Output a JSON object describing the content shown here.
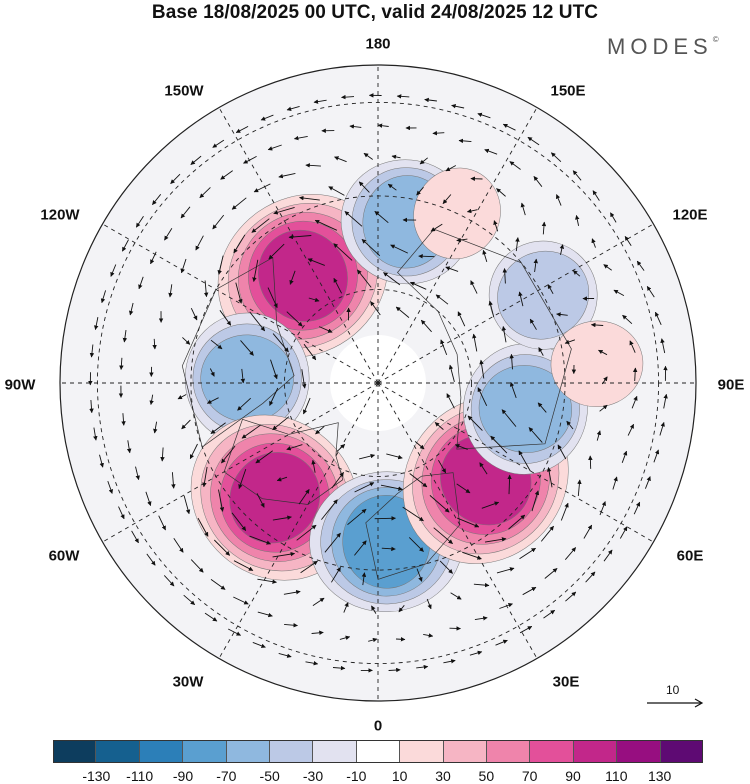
{
  "title": "Base 18/08/2025 00 UTC, valid 24/08/2025 12 UTC",
  "brand": "MODES",
  "brand_mark": "©",
  "longitude_labels": {
    "l180": "180",
    "l150e": "150E",
    "l120e": "120E",
    "l90e": "90E",
    "l60e": "60E",
    "l30e": "30E",
    "l0": "0",
    "l30w": "30W",
    "l60w": "60W",
    "l90w": "90W",
    "l120w": "120W",
    "l150w": "150W"
  },
  "vector_scale_label": "10",
  "colorbar": {
    "colors": [
      "#0d3d5e",
      "#15608f",
      "#2c7fb8",
      "#5a9fd0",
      "#8fb8df",
      "#bcc9e6",
      "#e2e2f0",
      "#ffffff",
      "#fbdada",
      "#f6b5c4",
      "#ef84ab",
      "#e3509a",
      "#c2278a",
      "#970e80",
      "#5e0a73"
    ],
    "ticks": [
      "-130",
      "-110",
      "-90",
      "-70",
      "-50",
      "-30",
      "-10",
      "10",
      "30",
      "50",
      "70",
      "90",
      "110",
      "130"
    ]
  },
  "anomalies": [
    {
      "name": "positive-anomaly-gulf-of-alaska",
      "value": 110,
      "lon": -145,
      "colat": 28
    },
    {
      "name": "negative-anomaly-hudson-bay",
      "value": -70,
      "lon": -92,
      "colat": 28
    },
    {
      "name": "positive-anomaly-north-atlantic",
      "value": 110,
      "lon": -42,
      "colat": 33
    },
    {
      "name": "negative-anomaly-scandinavia",
      "value": -90,
      "lon": 3,
      "colat": 34
    },
    {
      "name": "positive-anomaly-western-russia",
      "value": 110,
      "lon": 48,
      "colat": 31
    },
    {
      "name": "negative-anomaly-siberia",
      "value": -70,
      "lon": 80,
      "colat": 32
    },
    {
      "name": "negative-anomaly-east-siberia",
      "value": -50,
      "lon": 118,
      "colat": 40
    },
    {
      "name": "negative-anomaly-bering",
      "value": -70,
      "lon": 170,
      "colat": 35
    },
    {
      "name": "positive-anomaly-north-pacific",
      "value": 30,
      "lon": 155,
      "colat": 40
    },
    {
      "name": "positive-anomaly-central-asia",
      "value": 30,
      "lon": 95,
      "colat": 47
    }
  ]
}
